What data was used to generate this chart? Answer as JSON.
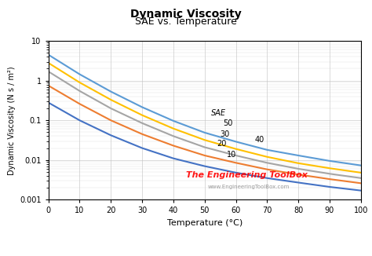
{
  "title": "Dynamic Viscosity",
  "subtitle": "SAE vs. Temperature",
  "xlabel": "Temperature (°C)",
  "ylabel": "Dynamic Viscosity (N s / m²)",
  "watermark": "The Engineering ToolBox",
  "watermark_url": "www.EngineeringToolBox.com",
  "xlim": [
    0,
    100
  ],
  "ylim": [
    0.001,
    10
  ],
  "xticks": [
    0,
    10,
    20,
    30,
    40,
    50,
    60,
    70,
    80,
    90,
    100
  ],
  "sae_grades": [
    10,
    20,
    30,
    40,
    50
  ],
  "colors": {
    "10": "#4472C4",
    "20": "#ED7D31",
    "30": "#A5A5A5",
    "40": "#FFC000",
    "50": "#5B9BD5"
  },
  "viscosity_data": {
    "10": {
      "temps": [
        0,
        10,
        20,
        30,
        40,
        50,
        60,
        70,
        80,
        90,
        100
      ],
      "visc": [
        0.28,
        0.1,
        0.042,
        0.02,
        0.011,
        0.007,
        0.0048,
        0.0035,
        0.0027,
        0.0021,
        0.0017
      ]
    },
    "20": {
      "temps": [
        0,
        10,
        20,
        30,
        40,
        50,
        60,
        70,
        80,
        90,
        100
      ],
      "visc": [
        0.75,
        0.26,
        0.1,
        0.045,
        0.023,
        0.013,
        0.0085,
        0.0058,
        0.0043,
        0.0033,
        0.0026
      ]
    },
    "30": {
      "temps": [
        0,
        10,
        20,
        30,
        40,
        50,
        60,
        70,
        80,
        90,
        100
      ],
      "visc": [
        1.7,
        0.55,
        0.2,
        0.085,
        0.04,
        0.021,
        0.013,
        0.0085,
        0.006,
        0.0045,
        0.0035
      ]
    },
    "40": {
      "temps": [
        0,
        10,
        20,
        30,
        40,
        50,
        60,
        70,
        80,
        90,
        100
      ],
      "visc": [
        2.8,
        0.9,
        0.33,
        0.135,
        0.062,
        0.032,
        0.019,
        0.012,
        0.0083,
        0.0062,
        0.0048
      ]
    },
    "50": {
      "temps": [
        0,
        10,
        20,
        30,
        40,
        50,
        60,
        70,
        80,
        90,
        100
      ],
      "visc": [
        4.5,
        1.45,
        0.53,
        0.215,
        0.097,
        0.049,
        0.029,
        0.018,
        0.013,
        0.0095,
        0.0073
      ]
    }
  },
  "background_color": "#FFFFFF",
  "grid_color": "#C0C0C0",
  "legend_label": "SAE",
  "title_fontsize": 10,
  "subtitle_fontsize": 9,
  "xlabel_fontsize": 8,
  "ylabel_fontsize": 7,
  "tick_fontsize": 7,
  "inline_label_fontsize": 7,
  "watermark_fontsize": 8,
  "watermark_url_fontsize": 5
}
